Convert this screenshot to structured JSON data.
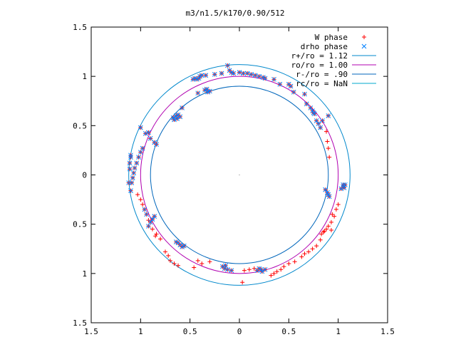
{
  "chart_data": {
    "type": "scatter",
    "title": "m3/n1.5/k170/0.90/512",
    "xlabel": "",
    "ylabel": "",
    "xlim": [
      -1.5,
      1.5
    ],
    "ylim": [
      -1.5,
      1.5
    ],
    "x_ticks": [
      {
        "value": -1.5,
        "label": "1.5"
      },
      {
        "value": -1.0,
        "label": "1"
      },
      {
        "value": -0.5,
        "label": "0.5"
      },
      {
        "value": 0,
        "label": "0"
      },
      {
        "value": 0.5,
        "label": "0.5"
      },
      {
        "value": 1.0,
        "label": "1"
      },
      {
        "value": 1.5,
        "label": "1.5"
      }
    ],
    "y_ticks": [
      {
        "value": 1.5,
        "label": "1.5"
      },
      {
        "value": 1.0,
        "label": "1"
      },
      {
        "value": 0.5,
        "label": "0.5"
      },
      {
        "value": 0,
        "label": "0"
      },
      {
        "value": -0.5,
        "label": "0.5"
      },
      {
        "value": -1.0,
        "label": "1"
      },
      {
        "value": -1.5,
        "label": "1.5"
      }
    ],
    "grid": false,
    "legend_position": "top-right",
    "legend": [
      {
        "label": "W phase",
        "kind": "plus",
        "color": "#ff0000"
      },
      {
        "label": "drho phase",
        "kind": "cross",
        "color": "#0080ff"
      },
      {
        "label": "r+/ro = 1.12",
        "kind": "line",
        "color": "#0088cc"
      },
      {
        "label": "ro/ro = 1.00",
        "kind": "line",
        "color": "#b000b0"
      },
      {
        "label": "r-/ro = .90",
        "kind": "line",
        "color": "#0066bb"
      },
      {
        "label": "rc/ro = NaN",
        "kind": "line",
        "color": "#00aacc"
      }
    ],
    "circles": [
      {
        "name": "r+/ro = 1.12",
        "radius": 1.12,
        "color": "#0088cc"
      },
      {
        "name": "ro/ro = 1.00",
        "radius": 1.0,
        "color": "#b000b0"
      },
      {
        "name": "r-/ro = .90",
        "radius": 0.9,
        "color": "#0066bb"
      }
    ],
    "series": [
      {
        "name": "W phase",
        "marker": "plus",
        "color": "#ff0000",
        "points": [
          [
            -0.98,
            0.27
          ],
          [
            -1.0,
            0.23
          ],
          [
            -1.02,
            0.18
          ],
          [
            -1.04,
            0.12
          ],
          [
            -1.06,
            0.07
          ],
          [
            -1.07,
            0.02
          ],
          [
            -1.08,
            -0.03
          ],
          [
            -1.09,
            -0.08
          ],
          [
            -1.1,
            -0.16
          ],
          [
            -1.12,
            -0.08
          ],
          [
            -1.11,
            0.06
          ],
          [
            -1.11,
            0.12
          ],
          [
            -1.1,
            0.18
          ],
          [
            -1.1,
            0.2
          ],
          [
            -1.0,
            0.48
          ],
          [
            -0.95,
            0.42
          ],
          [
            -0.92,
            0.43
          ],
          [
            -0.9,
            0.37
          ],
          [
            -0.86,
            0.33
          ],
          [
            -0.84,
            0.31
          ],
          [
            -0.66,
            0.56
          ],
          [
            -0.67,
            0.58
          ],
          [
            -0.64,
            0.6
          ],
          [
            -0.62,
            0.61
          ],
          [
            -0.6,
            0.59
          ],
          [
            -0.63,
            0.57
          ],
          [
            -0.58,
            0.68
          ],
          [
            -0.42,
            0.83
          ],
          [
            -0.35,
            0.86
          ],
          [
            -0.32,
            0.84
          ],
          [
            -0.3,
            0.85
          ],
          [
            -0.33,
            0.87
          ],
          [
            -0.47,
            0.97
          ],
          [
            -0.45,
            0.98
          ],
          [
            -0.43,
            0.97
          ],
          [
            -0.41,
            0.98
          ],
          [
            -0.4,
            1.0
          ],
          [
            -0.38,
            1.01
          ],
          [
            -0.34,
            1.01
          ],
          [
            -0.25,
            1.02
          ],
          [
            -0.18,
            1.03
          ],
          [
            -0.1,
            1.06
          ],
          [
            -0.12,
            1.11
          ],
          [
            -0.08,
            1.04
          ],
          [
            -0.06,
            1.03
          ],
          [
            0.0,
            1.04
          ],
          [
            0.04,
            1.03
          ],
          [
            0.08,
            1.03
          ],
          [
            0.12,
            1.02
          ],
          [
            0.16,
            1.01
          ],
          [
            0.2,
            1.0
          ],
          [
            0.24,
            0.99
          ],
          [
            0.26,
            0.98
          ],
          [
            0.35,
            0.97
          ],
          [
            0.41,
            0.92
          ],
          [
            0.5,
            0.92
          ],
          [
            0.52,
            0.9
          ],
          [
            0.55,
            0.84
          ],
          [
            0.66,
            0.82
          ],
          [
            0.68,
            0.72
          ],
          [
            0.72,
            0.68
          ],
          [
            0.74,
            0.65
          ],
          [
            0.75,
            0.63
          ],
          [
            0.76,
            0.62
          ],
          [
            0.78,
            0.55
          ],
          [
            0.8,
            0.52
          ],
          [
            0.82,
            0.48
          ],
          [
            0.84,
            0.55
          ],
          [
            0.9,
            0.6
          ],
          [
            0.88,
            0.44
          ],
          [
            0.89,
            0.34
          ],
          [
            0.9,
            0.27
          ],
          [
            0.91,
            0.18
          ],
          [
            0.87,
            -0.15
          ],
          [
            0.89,
            -0.18
          ],
          [
            0.9,
            -0.2
          ],
          [
            0.91,
            -0.22
          ],
          [
            1.03,
            -0.14
          ],
          [
            1.05,
            -0.12
          ],
          [
            1.06,
            -0.13
          ],
          [
            1.07,
            -0.1
          ],
          [
            1.05,
            -0.1
          ],
          [
            0.94,
            -0.4
          ],
          [
            0.93,
            -0.48
          ],
          [
            0.9,
            -0.52
          ],
          [
            0.88,
            -0.55
          ],
          [
            0.86,
            -0.57
          ],
          [
            0.85,
            -0.58
          ],
          [
            0.83,
            -0.6
          ],
          [
            1.0,
            -0.3
          ],
          [
            0.98,
            -0.35
          ],
          [
            0.96,
            -0.42
          ],
          [
            0.93,
            -0.56
          ],
          [
            0.82,
            -0.66
          ],
          [
            0.78,
            -0.72
          ],
          [
            0.74,
            -0.75
          ],
          [
            0.7,
            -0.78
          ],
          [
            0.66,
            -0.8
          ],
          [
            0.63,
            -0.83
          ],
          [
            0.56,
            -0.88
          ],
          [
            0.5,
            -0.9
          ],
          [
            0.45,
            -0.93
          ],
          [
            0.42,
            -0.96
          ],
          [
            0.38,
            -0.98
          ],
          [
            0.35,
            -1.0
          ],
          [
            0.32,
            -1.02
          ],
          [
            0.26,
            -0.96
          ],
          [
            0.22,
            -0.96
          ],
          [
            0.2,
            -0.95
          ],
          [
            0.18,
            -0.97
          ],
          [
            0.23,
            -0.98
          ],
          [
            0.15,
            -0.95
          ],
          [
            0.1,
            -0.96
          ],
          [
            0.05,
            -0.97
          ],
          [
            0.03,
            -1.09
          ],
          [
            -0.08,
            -0.97
          ],
          [
            -0.12,
            -0.96
          ],
          [
            -0.15,
            -0.95
          ],
          [
            -0.17,
            -0.93
          ],
          [
            -0.14,
            -0.92
          ],
          [
            -0.3,
            -0.88
          ],
          [
            -0.38,
            -0.9
          ],
          [
            -0.42,
            -0.87
          ],
          [
            -0.46,
            -0.94
          ],
          [
            -0.58,
            -0.73
          ],
          [
            -0.6,
            -0.71
          ],
          [
            -0.62,
            -0.69
          ],
          [
            -0.64,
            -0.68
          ],
          [
            -0.56,
            -0.72
          ],
          [
            -0.62,
            -0.92
          ],
          [
            -0.66,
            -0.9
          ],
          [
            -0.7,
            -0.87
          ],
          [
            -0.72,
            -0.82
          ],
          [
            -0.75,
            -0.78
          ],
          [
            -0.8,
            -0.65
          ],
          [
            -0.84,
            -0.6
          ],
          [
            -0.88,
            -0.55
          ],
          [
            -0.92,
            -0.46
          ],
          [
            -0.94,
            -0.4
          ],
          [
            -0.96,
            -0.35
          ],
          [
            -0.98,
            -0.3
          ],
          [
            -1.0,
            -0.25
          ],
          [
            -1.03,
            -0.2
          ],
          [
            -0.92,
            -0.52
          ],
          [
            -0.9,
            -0.48
          ],
          [
            -0.88,
            -0.45
          ],
          [
            -0.86,
            -0.42
          ],
          [
            -0.85,
            -0.62
          ]
        ]
      },
      {
        "name": "drho phase",
        "marker": "cross",
        "color": "#0080ff",
        "points": [
          [
            -0.98,
            0.27
          ],
          [
            -1.0,
            0.23
          ],
          [
            -1.02,
            0.18
          ],
          [
            -1.04,
            0.12
          ],
          [
            -1.06,
            0.07
          ],
          [
            -1.07,
            0.02
          ],
          [
            -1.08,
            -0.03
          ],
          [
            -1.09,
            -0.08
          ],
          [
            -1.1,
            -0.16
          ],
          [
            -1.12,
            -0.08
          ],
          [
            -1.11,
            0.06
          ],
          [
            -1.11,
            0.12
          ],
          [
            -1.1,
            0.18
          ],
          [
            -1.1,
            0.2
          ],
          [
            -1.0,
            0.48
          ],
          [
            -0.95,
            0.42
          ],
          [
            -0.92,
            0.43
          ],
          [
            -0.9,
            0.37
          ],
          [
            -0.86,
            0.33
          ],
          [
            -0.84,
            0.31
          ],
          [
            -0.66,
            0.56
          ],
          [
            -0.67,
            0.58
          ],
          [
            -0.64,
            0.6
          ],
          [
            -0.62,
            0.61
          ],
          [
            -0.6,
            0.59
          ],
          [
            -0.63,
            0.57
          ],
          [
            -0.58,
            0.68
          ],
          [
            -0.42,
            0.83
          ],
          [
            -0.35,
            0.86
          ],
          [
            -0.32,
            0.84
          ],
          [
            -0.3,
            0.85
          ],
          [
            -0.33,
            0.87
          ],
          [
            -0.47,
            0.97
          ],
          [
            -0.45,
            0.98
          ],
          [
            -0.43,
            0.97
          ],
          [
            -0.41,
            0.98
          ],
          [
            -0.4,
            1.0
          ],
          [
            -0.38,
            1.01
          ],
          [
            -0.34,
            1.01
          ],
          [
            -0.25,
            1.02
          ],
          [
            -0.18,
            1.03
          ],
          [
            -0.1,
            1.06
          ],
          [
            -0.12,
            1.11
          ],
          [
            -0.08,
            1.04
          ],
          [
            -0.06,
            1.03
          ],
          [
            0.0,
            1.04
          ],
          [
            0.04,
            1.03
          ],
          [
            0.08,
            1.03
          ],
          [
            0.12,
            1.02
          ],
          [
            0.16,
            1.01
          ],
          [
            0.2,
            1.0
          ],
          [
            0.24,
            0.99
          ],
          [
            0.26,
            0.98
          ],
          [
            0.35,
            0.97
          ],
          [
            0.41,
            0.92
          ],
          [
            0.5,
            0.92
          ],
          [
            0.52,
            0.9
          ],
          [
            0.55,
            0.84
          ],
          [
            0.66,
            0.82
          ],
          [
            0.68,
            0.72
          ],
          [
            0.72,
            0.68
          ],
          [
            0.74,
            0.65
          ],
          [
            0.75,
            0.63
          ],
          [
            0.76,
            0.62
          ],
          [
            0.78,
            0.55
          ],
          [
            0.8,
            0.52
          ],
          [
            0.82,
            0.48
          ],
          [
            0.84,
            0.55
          ],
          [
            0.9,
            0.6
          ],
          [
            0.87,
            -0.15
          ],
          [
            0.89,
            -0.18
          ],
          [
            0.9,
            -0.2
          ],
          [
            0.91,
            -0.22
          ],
          [
            1.03,
            -0.14
          ],
          [
            1.05,
            -0.12
          ],
          [
            1.06,
            -0.13
          ],
          [
            1.07,
            -0.1
          ],
          [
            1.05,
            -0.1
          ],
          [
            0.26,
            -0.96
          ],
          [
            0.22,
            -0.96
          ],
          [
            0.2,
            -0.95
          ],
          [
            0.18,
            -0.97
          ],
          [
            0.23,
            -0.98
          ],
          [
            -0.08,
            -0.97
          ],
          [
            -0.12,
            -0.96
          ],
          [
            -0.15,
            -0.95
          ],
          [
            -0.17,
            -0.93
          ],
          [
            -0.14,
            -0.92
          ],
          [
            -0.58,
            -0.73
          ],
          [
            -0.6,
            -0.71
          ],
          [
            -0.62,
            -0.69
          ],
          [
            -0.64,
            -0.68
          ],
          [
            -0.56,
            -0.72
          ],
          [
            -0.92,
            -0.52
          ],
          [
            -0.9,
            -0.48
          ],
          [
            -0.88,
            -0.45
          ],
          [
            -0.86,
            -0.42
          ],
          [
            -0.94,
            -0.4
          ],
          [
            -0.96,
            -0.35
          ]
        ]
      }
    ]
  }
}
